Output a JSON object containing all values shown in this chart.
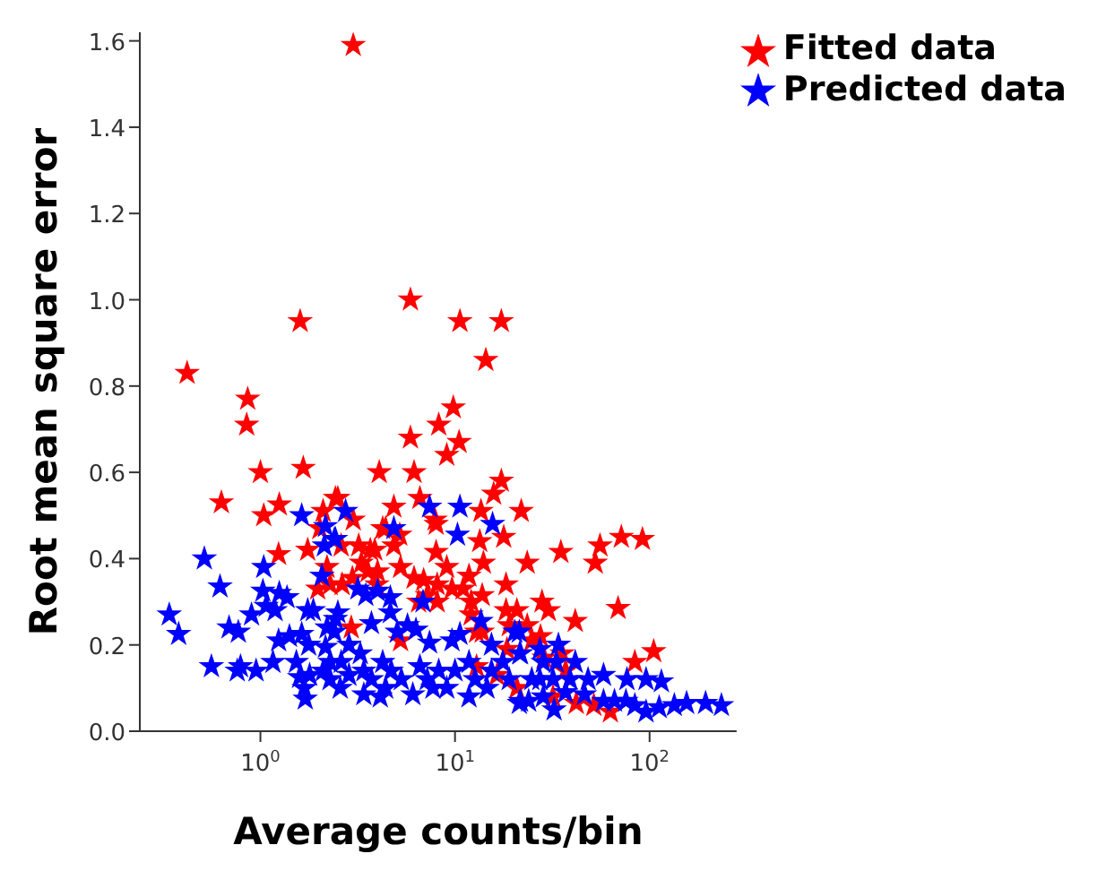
{
  "chart_data": {
    "type": "scatter",
    "xlabel": "Average counts/bin",
    "ylabel": "Root mean square error",
    "log": "x",
    "marker": "star",
    "legend": "top right",
    "grid": false,
    "xlim": [
      0.24,
      280
    ],
    "xticks": [
      {
        "value": 1,
        "label": "10$^{0}$"
      },
      {
        "value": 10,
        "label": "10$^{1}$"
      },
      {
        "value": 100,
        "label": "10$^{2}$"
      }
    ],
    "ylim": [
      0,
      1.62
    ],
    "yticks": [
      {
        "value": 0,
        "label": "0.0"
      },
      {
        "value": 0.2,
        "label": "0.2"
      },
      {
        "value": 0.4,
        "label": "0.4"
      },
      {
        "value": 0.6,
        "label": "0.6"
      },
      {
        "value": 0.8,
        "label": "0.8"
      },
      {
        "value": 1.0,
        "label": "1.0"
      },
      {
        "value": 1.2,
        "label": "1.2"
      },
      {
        "value": 1.4,
        "label": "1.4"
      },
      {
        "value": 1.6,
        "label": "1.6"
      }
    ],
    "series": [
      {
        "name": "Fitted data",
        "color": "#ff0000",
        "x": [
          3.0,
          0.42,
          1.6,
          5.9,
          10.6,
          17.3,
          14.4,
          0.86,
          0.85,
          1.0,
          0.63,
          1.04,
          1.25,
          1.66,
          1.24,
          1.75,
          2.1,
          2.02,
          2.43,
          2.2,
          2.28,
          1.97,
          9.8,
          8.25,
          10.5,
          9.07,
          5.9,
          6.16,
          4.08,
          2.5,
          3.0,
          4.85,
          6.6,
          7.9,
          8.0,
          4.25,
          4.4,
          5.2,
          4.85,
          2.6,
          3.2,
          3.67,
          3.87,
          3.3,
          3.57,
          8.0,
          5.25,
          9.07,
          4.0,
          3.97,
          2.97,
          2.63,
          6.16,
          6.9,
          8.1,
          9.65,
          11.0,
          11.8,
          6.5,
          7.2,
          8.1,
          12.1,
          12.1,
          13.6,
          13.4,
          14.0,
          13.8,
          12.9,
          13.8,
          15.8,
          17.3,
          17.8,
          18.3,
          18.3,
          20.8,
          19.0,
          18.5,
          21.9,
          23.5,
          2.93,
          5.25,
          35,
          52.6,
          55.6,
          71.6,
          91.9,
          28,
          30.2,
          23.5,
          27.5,
          24.8,
          41.5,
          68.9,
          105,
          84,
          37,
          35.5,
          28.7,
          31.9,
          42,
          51.7,
          62.9,
          20.8,
          12.9,
          16.4
        ],
        "values": [
          1.59,
          0.83,
          0.95,
          1.0,
          0.95,
          0.95,
          0.86,
          0.77,
          0.71,
          0.6,
          0.53,
          0.5,
          0.525,
          0.61,
          0.41,
          0.42,
          0.51,
          0.47,
          0.54,
          0.38,
          0.34,
          0.33,
          0.75,
          0.71,
          0.67,
          0.64,
          0.68,
          0.6,
          0.6,
          0.54,
          0.49,
          0.52,
          0.54,
          0.49,
          0.48,
          0.47,
          0.47,
          0.455,
          0.43,
          0.43,
          0.43,
          0.42,
          0.42,
          0.39,
          0.37,
          0.415,
          0.38,
          0.38,
          0.37,
          0.34,
          0.355,
          0.34,
          0.355,
          0.35,
          0.34,
          0.33,
          0.33,
          0.36,
          0.3,
          0.315,
          0.3,
          0.3,
          0.27,
          0.51,
          0.44,
          0.39,
          0.315,
          0.23,
          0.23,
          0.55,
          0.58,
          0.45,
          0.34,
          0.28,
          0.28,
          0.245,
          0.19,
          0.51,
          0.39,
          0.24,
          0.21,
          0.415,
          0.39,
          0.43,
          0.45,
          0.445,
          0.3,
          0.28,
          0.245,
          0.22,
          0.21,
          0.255,
          0.285,
          0.185,
          0.16,
          0.14,
          0.18,
          0.17,
          0.08,
          0.065,
          0.06,
          0.045,
          0.1,
          0.15,
          0.13
        ]
      },
      {
        "name": "Predicted data",
        "color": "#0000ff",
        "x": [
          0.34,
          0.38,
          0.515,
          0.62,
          0.69,
          0.77,
          0.56,
          0.76,
          0.79,
          0.95,
          0.9,
          1.04,
          1.03,
          1.07,
          1.19,
          1.25,
          1.37,
          1.16,
          1.24,
          1.41,
          1.63,
          1.63,
          1.77,
          1.75,
          1.87,
          2.07,
          2.13,
          2.16,
          2.43,
          1.53,
          1.59,
          1.68,
          1.7,
          1.79,
          2.1,
          2.16,
          2.2,
          2.28,
          2.43,
          2.74,
          2.4,
          4.85,
          7.4,
          10.6,
          10.3,
          15.6,
          6.85,
          4.65,
          4.65,
          3.17,
          3.48,
          4.0,
          2.5,
          2.4,
          3.72,
          5.05,
          5.7,
          6.3,
          7.4,
          9.65,
          10.6,
          13.6,
          15.4,
          20.3,
          21.5,
          2.85,
          3.26,
          2.6,
          2.28,
          3.4,
          3.72,
          4.25,
          4.7,
          5.3,
          4.13,
          3.4,
          2.57,
          6.07,
          6.6,
          7.2,
          8.25,
          9.07,
          10.0,
          11.8,
          12.7,
          11.8,
          14.6,
          15.4,
          17.6,
          19.0,
          21.7,
          7.7,
          2.85,
          4.4,
          21.4,
          21.7,
          27.3,
          34,
          33.2,
          24.8,
          27.3,
          28.4,
          41.5,
          39,
          48.3,
          58,
          76.5,
          95.9,
          115,
          28.4,
          31.9,
          32.3,
          37,
          46.3,
          58,
          66,
          75.6,
          84,
          95.9,
          112,
          134,
          155,
          194,
          234,
          23.9,
          21.4
        ],
        "values": [
          0.27,
          0.225,
          0.4,
          0.335,
          0.24,
          0.23,
          0.15,
          0.14,
          0.15,
          0.14,
          0.27,
          0.38,
          0.325,
          0.29,
          0.28,
          0.32,
          0.31,
          0.16,
          0.21,
          0.22,
          0.5,
          0.225,
          0.2,
          0.28,
          0.28,
          0.36,
          0.43,
          0.475,
          0.445,
          0.16,
          0.125,
          0.1,
          0.075,
          0.13,
          0.14,
          0.195,
          0.24,
          0.12,
          0.26,
          0.51,
          0.445,
          0.47,
          0.52,
          0.52,
          0.455,
          0.48,
          0.3,
          0.31,
          0.275,
          0.33,
          0.315,
          0.325,
          0.275,
          0.23,
          0.25,
          0.23,
          0.245,
          0.235,
          0.205,
          0.21,
          0.225,
          0.255,
          0.2,
          0.23,
          0.18,
          0.2,
          0.18,
          0.16,
          0.16,
          0.14,
          0.12,
          0.16,
          0.14,
          0.12,
          0.08,
          0.085,
          0.1,
          0.085,
          0.15,
          0.12,
          0.14,
          0.1,
          0.14,
          0.16,
          0.12,
          0.08,
          0.1,
          0.14,
          0.16,
          0.12,
          0.07,
          0.1,
          0.13,
          0.1,
          0.23,
          0.18,
          0.19,
          0.2,
          0.16,
          0.12,
          0.12,
          0.16,
          0.16,
          0.12,
          0.12,
          0.13,
          0.12,
          0.12,
          0.115,
          0.08,
          0.12,
          0.05,
          0.09,
          0.085,
          0.07,
          0.07,
          0.07,
          0.06,
          0.045,
          0.055,
          0.06,
          0.065,
          0.065,
          0.06,
          0.07,
          0.065
        ]
      }
    ]
  }
}
